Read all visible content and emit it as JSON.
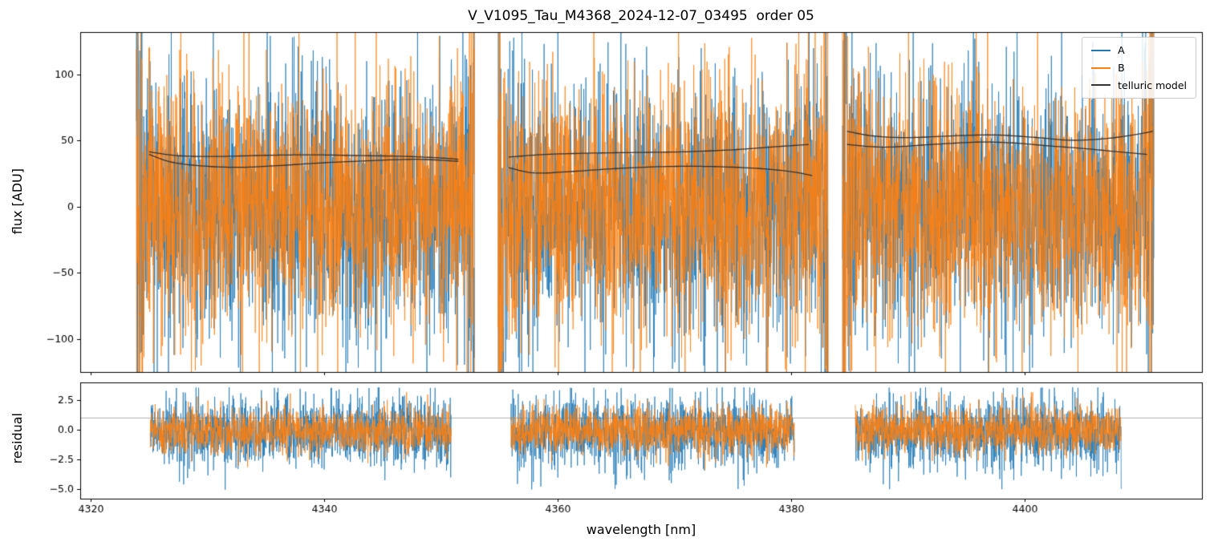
{
  "figure": {
    "title": "V_V1095_Tau_M4368_2024-12-07_03495  order 05",
    "xlabel": "wavelength [nm]",
    "background": "#ffffff"
  },
  "chart_data": [
    {
      "type": "line",
      "panel": "flux",
      "ylabel": "flux [ADU]",
      "xlim": [
        4319.1,
        4415.2
      ],
      "ylim": [
        -125,
        132
      ],
      "grid": false,
      "show_xtick_labels": false,
      "xticks": [
        {
          "v": 4320,
          "label": "4320"
        },
        {
          "v": 4340,
          "label": "4340"
        },
        {
          "v": 4360,
          "label": "4360"
        },
        {
          "v": 4380,
          "label": "4380"
        },
        {
          "v": 4400,
          "label": "4400"
        }
      ],
      "yticks": [
        {
          "v": 100,
          "label": "100"
        },
        {
          "v": 50,
          "label": "50"
        },
        {
          "v": 0,
          "label": "0"
        },
        {
          "v": -50,
          "label": "−50"
        },
        {
          "v": -100,
          "label": "−100"
        }
      ],
      "legend": {
        "position": "upper right",
        "entries": [
          {
            "label": "A",
            "color": "#1f77b4"
          },
          {
            "label": "B",
            "color": "#ff7f0e"
          },
          {
            "label": "telluric model",
            "color": "#333333"
          }
        ]
      },
      "series": [
        {
          "name": "A",
          "color": "#1f77b4",
          "kind": "noisy-spectrum",
          "mean": 0,
          "std": 50,
          "edge_boost": 2.6,
          "segments": [
            [
              4323.9,
              4352.9
            ],
            [
              4354.9,
              4383.2
            ],
            [
              4384.4,
              4411.1
            ]
          ]
        },
        {
          "name": "B",
          "color": "#ff7f0e",
          "kind": "noisy-spectrum",
          "mean": 0,
          "std": 47,
          "edge_boost": 2.6,
          "segments": [
            [
              4323.9,
              4352.9
            ],
            [
              4354.9,
              4383.2
            ],
            [
              4384.4,
              4411.1
            ]
          ]
        },
        {
          "name": "telluric model",
          "color": "#333333",
          "kind": "model",
          "curves": [
            [
              [
                4325,
                41.5
              ],
              [
                4327.5,
                38.5
              ],
              [
                4331,
                38
              ],
              [
                4335,
                38.8
              ],
              [
                4339,
                39.2
              ],
              [
                4343,
                38.6
              ],
              [
                4347,
                38
              ],
              [
                4350,
                36.8
              ],
              [
                4351.5,
                35.8
              ]
            ],
            [
              [
                4325,
                39.5
              ],
              [
                4327,
                33.5
              ],
              [
                4330,
                30.5
              ],
              [
                4333,
                29.8
              ],
              [
                4336,
                31
              ],
              [
                4340,
                33.2
              ],
              [
                4344,
                34.8
              ],
              [
                4348,
                35.8
              ],
              [
                4351.5,
                34.3
              ]
            ],
            [
              [
                4355.8,
                37.5
              ],
              [
                4359,
                39.5
              ],
              [
                4363,
                40.5
              ],
              [
                4367,
                41
              ],
              [
                4371,
                41.5
              ],
              [
                4375,
                43
              ],
              [
                4378.5,
                45.2
              ],
              [
                4381.5,
                47
              ]
            ],
            [
              [
                4355.8,
                29.5
              ],
              [
                4358,
                25.5
              ],
              [
                4361,
                26.5
              ],
              [
                4365,
                28.8
              ],
              [
                4369,
                30.3
              ],
              [
                4373,
                30.4
              ],
              [
                4377,
                29
              ],
              [
                4380,
                26.5
              ],
              [
                4381.8,
                23.5
              ]
            ],
            [
              [
                4384.8,
                57
              ],
              [
                4387,
                53.5
              ],
              [
                4390,
                52.2
              ],
              [
                4394,
                53.6
              ],
              [
                4397.5,
                54.2
              ],
              [
                4401,
                52.3
              ],
              [
                4404,
                50.2
              ],
              [
                4407,
                51.5
              ],
              [
                4409.5,
                54.5
              ],
              [
                4411,
                57
              ]
            ],
            [
              [
                4384.8,
                47
              ],
              [
                4388,
                45
              ],
              [
                4392,
                47
              ],
              [
                4396,
                48.8
              ],
              [
                4399,
                48.2
              ],
              [
                4402,
                46
              ],
              [
                4405,
                44
              ],
              [
                4408,
                41.5
              ],
              [
                4410.5,
                39.5
              ]
            ]
          ]
        }
      ]
    },
    {
      "type": "line",
      "panel": "residual",
      "ylabel": "residual",
      "xlim": [
        4319.1,
        4415.2
      ],
      "ylim": [
        -5.8,
        4.0
      ],
      "grid": false,
      "show_xtick_labels": true,
      "hline": 1.0,
      "xticks": [
        {
          "v": 4320,
          "label": "4320"
        },
        {
          "v": 4340,
          "label": "4340"
        },
        {
          "v": 4360,
          "label": "4360"
        },
        {
          "v": 4380,
          "label": "4380"
        },
        {
          "v": 4400,
          "label": "4400"
        }
      ],
      "yticks": [
        {
          "v": 2.5,
          "label": "2.5"
        },
        {
          "v": 0,
          "label": "0.0"
        },
        {
          "v": -2.5,
          "label": "−2.5"
        },
        {
          "v": -5,
          "label": "−5.0"
        }
      ],
      "series": [
        {
          "name": "A",
          "color": "#1f77b4",
          "kind": "noisy-spectrum",
          "mean": -0.2,
          "std": 1.5,
          "edge_boost": 0,
          "clip_low": -5.05,
          "clip_high": 3.6,
          "segments": [
            [
              4325.1,
              4350.9
            ],
            [
              4356.0,
              4380.3
            ],
            [
              4385.5,
              4408.3
            ]
          ]
        },
        {
          "name": "B",
          "color": "#ff7f0e",
          "kind": "noisy-spectrum",
          "mean": 0,
          "std": 1.0,
          "edge_boost": 0,
          "clip_low": -4.0,
          "clip_high": 3.2,
          "segments": [
            [
              4325.1,
              4350.9
            ],
            [
              4356.0,
              4380.3
            ],
            [
              4385.5,
              4408.3
            ]
          ]
        }
      ]
    }
  ]
}
